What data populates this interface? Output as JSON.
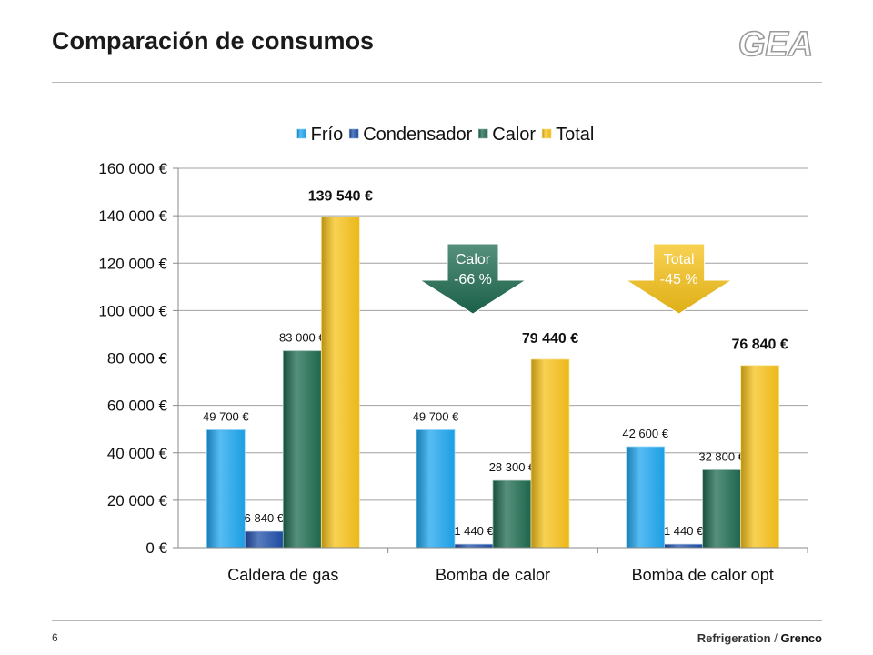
{
  "slide": {
    "title": "Comparación de consumos",
    "logo_text": "GEA",
    "page_number": "6",
    "footer_brand": "Refrigeration",
    "footer_separator": "/",
    "footer_division": "Grenco"
  },
  "colors": {
    "frio": "#1ea6ef",
    "condensador": "#1f4fa8",
    "calor": "#1e6b50",
    "total": "#f7c21a",
    "rule": "#b8b8b8"
  },
  "chart_data": {
    "type": "bar",
    "categories": [
      "Caldera de gas",
      "Bomba de calor",
      "Bomba de calor opt"
    ],
    "series": [
      {
        "name": "Frío",
        "values": [
          49700,
          49700,
          42600
        ],
        "labels": [
          "49 700 €",
          "49 700 €",
          "42 600 €"
        ],
        "color": "#1ea6ef"
      },
      {
        "name": "Condensador",
        "values": [
          6840,
          1440,
          1440
        ],
        "labels": [
          "6 840 €",
          "1 440 €",
          "1 440 €"
        ],
        "color": "#1f4fa8"
      },
      {
        "name": "Calor",
        "values": [
          83000,
          28300,
          32800
        ],
        "labels": [
          "83 000 €",
          "28 300 €",
          "32 800 €"
        ],
        "color": "#1e6b50"
      },
      {
        "name": "Total",
        "values": [
          139540,
          79440,
          76840
        ],
        "labels": [
          "139 540 €",
          "79 440 €",
          "76 840 €"
        ],
        "color": "#f7c21a"
      }
    ],
    "ylim": [
      0,
      160000
    ],
    "yticks": [
      0,
      20000,
      40000,
      60000,
      80000,
      100000,
      120000,
      140000,
      160000
    ],
    "ytick_labels": [
      "0 €",
      "20 000 €",
      "40 000 €",
      "60 000 €",
      "80 000 €",
      "100 000 €",
      "120 000 €",
      "140 000 €",
      "160 000 €"
    ],
    "grid": true,
    "legend_position": "top",
    "annotations": [
      {
        "line1": "Calor",
        "line2": "-66 %",
        "color": "#1e6b50",
        "category": "Bomba de calor"
      },
      {
        "line1": "Total",
        "line2": "-45 %",
        "color": "#f7c21a",
        "category": "Bomba de calor opt"
      }
    ]
  }
}
